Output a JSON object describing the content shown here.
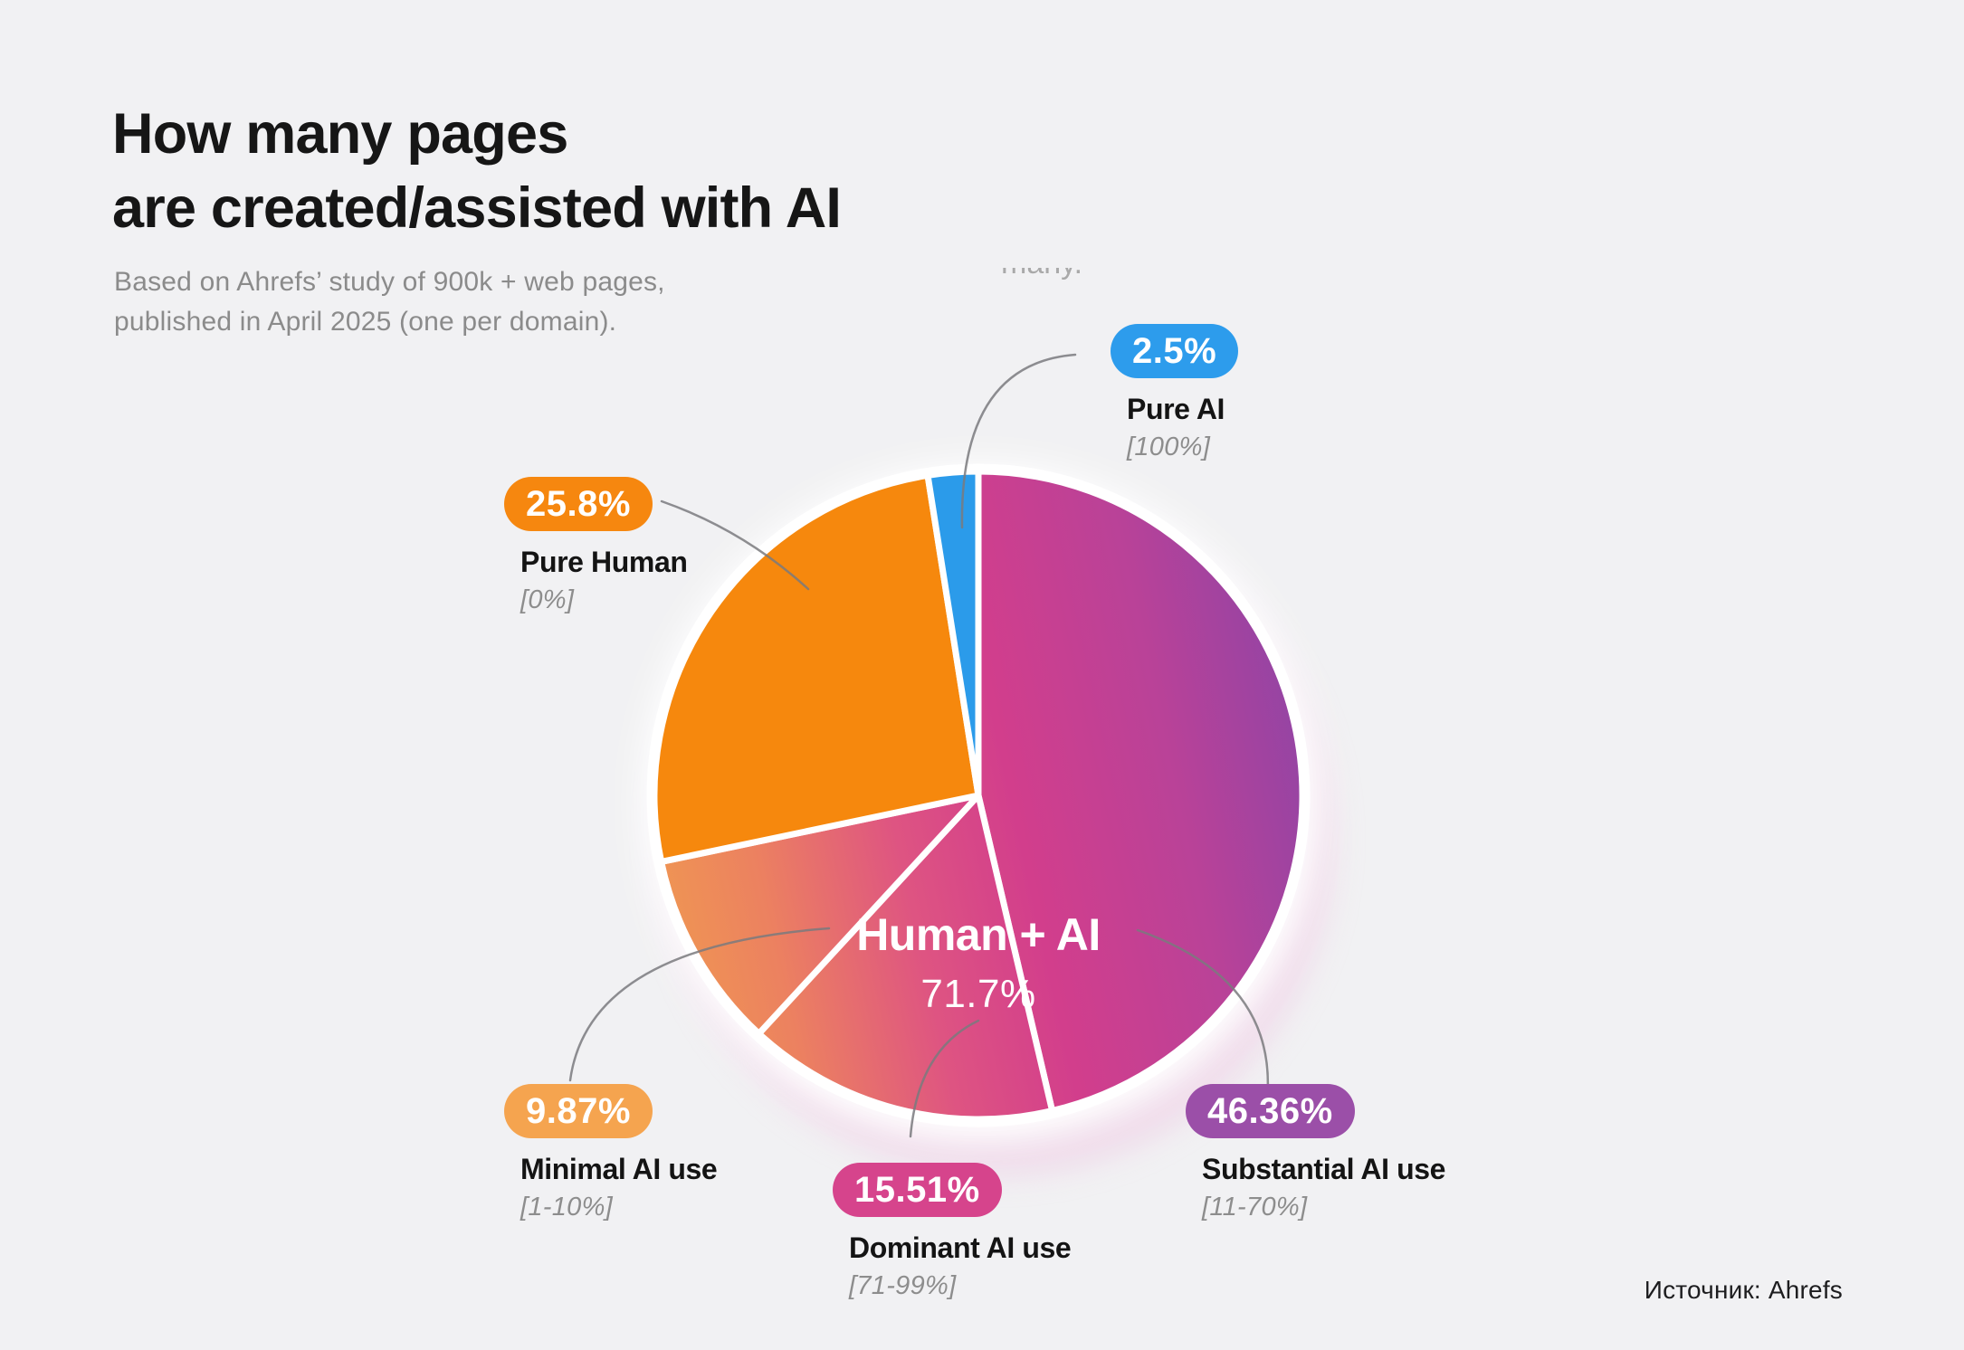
{
  "page": {
    "background_color": "#F1F1F3",
    "title_line1": "How many pages",
    "title_line2": "are created/assisted with AI",
    "subtitle_line1": "Based on Ahrefs’ study of 900k + web pages,",
    "subtitle_line2": "published in April 2025 (one per domain).",
    "clipped_text_fragment": "many.",
    "source": "Источник: Ahrefs"
  },
  "chart_data": {
    "type": "pie",
    "title": "How many pages are created/assisted with AI",
    "units": "%",
    "order": "clockwise from 12 o'clock",
    "slices": [
      {
        "name": "Substantial AI use",
        "ai_share_range": "[11-70%]",
        "value": 46.36,
        "display": "46.36%",
        "fill": "human-ai-gradient",
        "pill_color": "#9B4FA8"
      },
      {
        "name": "Dominant AI use",
        "ai_share_range": "[71-99%]",
        "value": 15.51,
        "display": "15.51%",
        "fill": "human-ai-gradient",
        "pill_color": "#D6448C"
      },
      {
        "name": "Minimal AI use",
        "ai_share_range": "[1-10%]",
        "value": 9.87,
        "display": "9.87%",
        "fill": "human-ai-gradient",
        "pill_color": "#F5A44F"
      },
      {
        "name": "Pure Human",
        "ai_share_range": "[0%]",
        "value": 25.8,
        "display": "25.8%",
        "fill": "#F6880D",
        "pill_color": "#F6870F"
      },
      {
        "name": "Pure AI",
        "ai_share_range": "[100%]",
        "value": 2.5,
        "display": "2.5%",
        "fill": "#2B9BEA",
        "pill_color": "#2D9CEC"
      }
    ],
    "group_label": {
      "label": "Human + AI",
      "value": 71.7,
      "display": "71.7%",
      "members": [
        "Substantial AI use",
        "Dominant AI use",
        "Minimal AI use"
      ]
    },
    "human_ai_gradient_stops": [
      {
        "offset": 0,
        "color": "#F09A50"
      },
      {
        "offset": 0.18,
        "color": "#EC8160"
      },
      {
        "offset": 0.38,
        "color": "#DE5482"
      },
      {
        "offset": 0.55,
        "color": "#D23E8C"
      },
      {
        "offset": 0.78,
        "color": "#B94298"
      },
      {
        "offset": 1,
        "color": "#8E44A6"
      }
    ],
    "legend_position": "around pie, with leader lines",
    "grid": false
  }
}
